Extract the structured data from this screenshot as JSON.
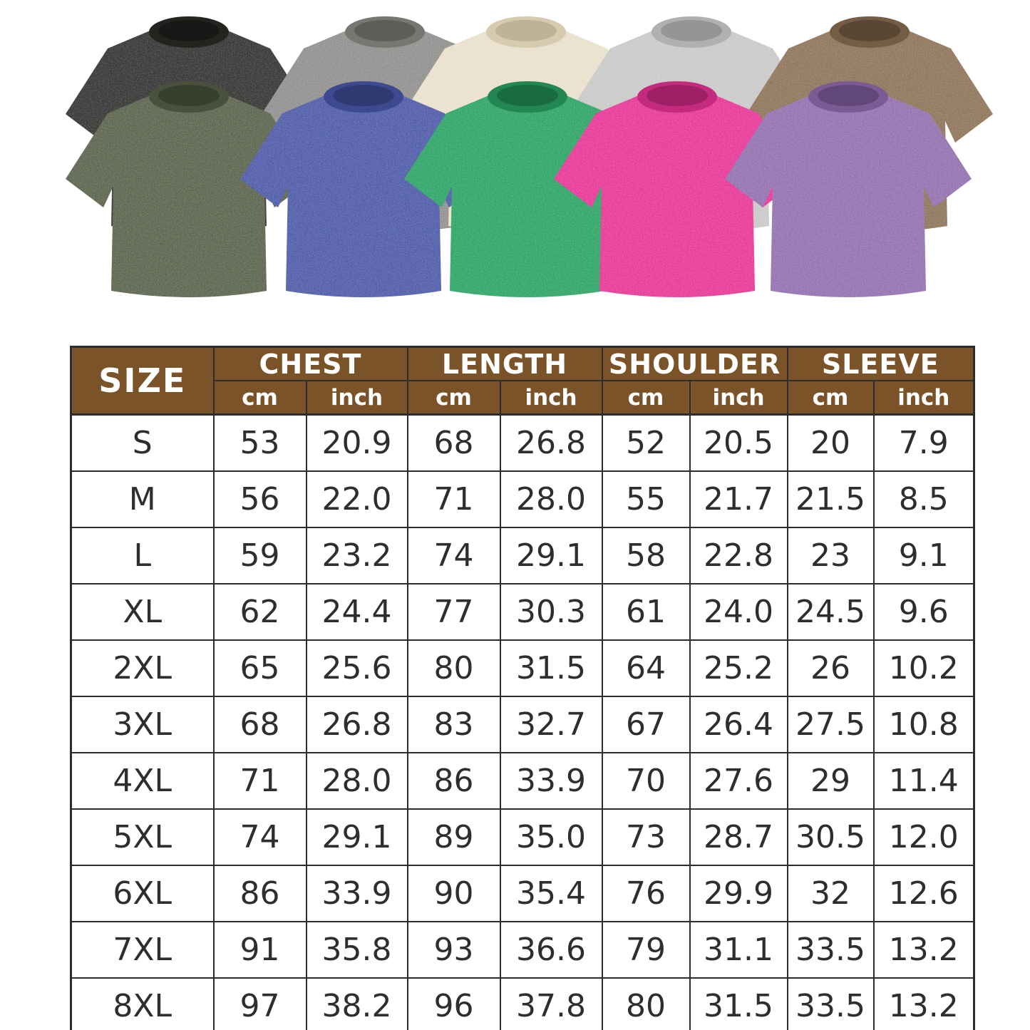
{
  "shirts": {
    "back_row": [
      {
        "name": "washed-black",
        "color": "#343230",
        "collar": "#242320",
        "neck": "#191816"
      },
      {
        "name": "washed-gray",
        "color": "#8f8e8c",
        "collar": "#787673",
        "neck": "#5f5d5a"
      },
      {
        "name": "washed-cream",
        "color": "#e9e0cb",
        "collar": "#d6cab0",
        "neck": "#bfb296"
      },
      {
        "name": "washed-light-gray",
        "color": "#c8c8c6",
        "collar": "#b0b0ae",
        "neck": "#959593"
      },
      {
        "name": "washed-brown",
        "color": "#8d7257",
        "collar": "#745c45",
        "neck": "#594634"
      }
    ],
    "front_row": [
      {
        "name": "washed-army-green",
        "color": "#59614a",
        "collar": "#49513d",
        "neck": "#383f2f"
      },
      {
        "name": "washed-blue",
        "color": "#4c59a7",
        "collar": "#3e4a8f",
        "neck": "#2f3a73"
      },
      {
        "name": "washed-green",
        "color": "#2ba364",
        "collar": "#228753",
        "neck": "#196b41"
      },
      {
        "name": "washed-hot-pink",
        "color": "#e63595",
        "collar": "#c42a7d",
        "neck": "#9f2065"
      },
      {
        "name": "washed-purple",
        "color": "#916fae",
        "collar": "#7a5b94",
        "neck": "#624878"
      }
    ]
  },
  "size_chart": {
    "colors": {
      "header_bg": "#7a5329",
      "header_text": "#ffffff",
      "border": "#2d2d2d",
      "cell_text": "#2e2e2e",
      "row_bg": "#ffffff"
    },
    "header": {
      "size_label": "SIZE",
      "groups": [
        {
          "label": "CHEST"
        },
        {
          "label": "LENGTH"
        },
        {
          "label": "SHOULDER"
        },
        {
          "label": "SLEEVE"
        }
      ],
      "unit_cm": "cm",
      "unit_inch": "inch"
    },
    "rows": [
      {
        "size": "S",
        "values": [
          "53",
          "20.9",
          "68",
          "26.8",
          "52",
          "20.5",
          "20",
          "7.9"
        ]
      },
      {
        "size": "M",
        "values": [
          "56",
          "22.0",
          "71",
          "28.0",
          "55",
          "21.7",
          "21.5",
          "8.5"
        ]
      },
      {
        "size": "L",
        "values": [
          "59",
          "23.2",
          "74",
          "29.1",
          "58",
          "22.8",
          "23",
          "9.1"
        ]
      },
      {
        "size": "XL",
        "values": [
          "62",
          "24.4",
          "77",
          "30.3",
          "61",
          "24.0",
          "24.5",
          "9.6"
        ]
      },
      {
        "size": "2XL",
        "values": [
          "65",
          "25.6",
          "80",
          "31.5",
          "64",
          "25.2",
          "26",
          "10.2"
        ]
      },
      {
        "size": "3XL",
        "values": [
          "68",
          "26.8",
          "83",
          "32.7",
          "67",
          "26.4",
          "27.5",
          "10.8"
        ]
      },
      {
        "size": "4XL",
        "values": [
          "71",
          "28.0",
          "86",
          "33.9",
          "70",
          "27.6",
          "29",
          "11.4"
        ]
      },
      {
        "size": "5XL",
        "values": [
          "74",
          "29.1",
          "89",
          "35.0",
          "73",
          "28.7",
          "30.5",
          "12.0"
        ]
      },
      {
        "size": "6XL",
        "values": [
          "86",
          "33.9",
          "90",
          "35.4",
          "76",
          "29.9",
          "32",
          "12.6"
        ]
      },
      {
        "size": "7XL",
        "values": [
          "91",
          "35.8",
          "93",
          "36.6",
          "79",
          "31.1",
          "33.5",
          "13.2"
        ]
      },
      {
        "size": "8XL",
        "values": [
          "97",
          "38.2",
          "96",
          "37.8",
          "80",
          "31.5",
          "33.5",
          "13.2"
        ]
      }
    ]
  },
  "chart_data": {
    "type": "table",
    "title": "T-shirt size chart",
    "columns": [
      "SIZE",
      "CHEST cm",
      "CHEST inch",
      "LENGTH cm",
      "LENGTH inch",
      "SHOULDER cm",
      "SHOULDER inch",
      "SLEEVE cm",
      "SLEEVE inch"
    ],
    "rows": [
      [
        "S",
        53,
        20.9,
        68,
        26.8,
        52,
        20.5,
        20,
        7.9
      ],
      [
        "M",
        56,
        22.0,
        71,
        28.0,
        55,
        21.7,
        21.5,
        8.5
      ],
      [
        "L",
        59,
        23.2,
        74,
        29.1,
        58,
        22.8,
        23,
        9.1
      ],
      [
        "XL",
        62,
        24.4,
        77,
        30.3,
        61,
        24.0,
        24.5,
        9.6
      ],
      [
        "2XL",
        65,
        25.6,
        80,
        31.5,
        64,
        25.2,
        26,
        10.2
      ],
      [
        "3XL",
        68,
        26.8,
        83,
        32.7,
        67,
        26.4,
        27.5,
        10.8
      ],
      [
        "4XL",
        71,
        28.0,
        86,
        33.9,
        70,
        27.6,
        29,
        11.4
      ],
      [
        "5XL",
        74,
        29.1,
        89,
        35.0,
        73,
        28.7,
        30.5,
        12.0
      ],
      [
        "6XL",
        86,
        33.9,
        90,
        35.4,
        76,
        29.9,
        32,
        12.6
      ],
      [
        "7XL",
        91,
        35.8,
        93,
        36.6,
        79,
        31.1,
        33.5,
        13.2
      ],
      [
        "8XL",
        97,
        38.2,
        96,
        37.8,
        80,
        31.5,
        33.5,
        13.2
      ]
    ]
  }
}
